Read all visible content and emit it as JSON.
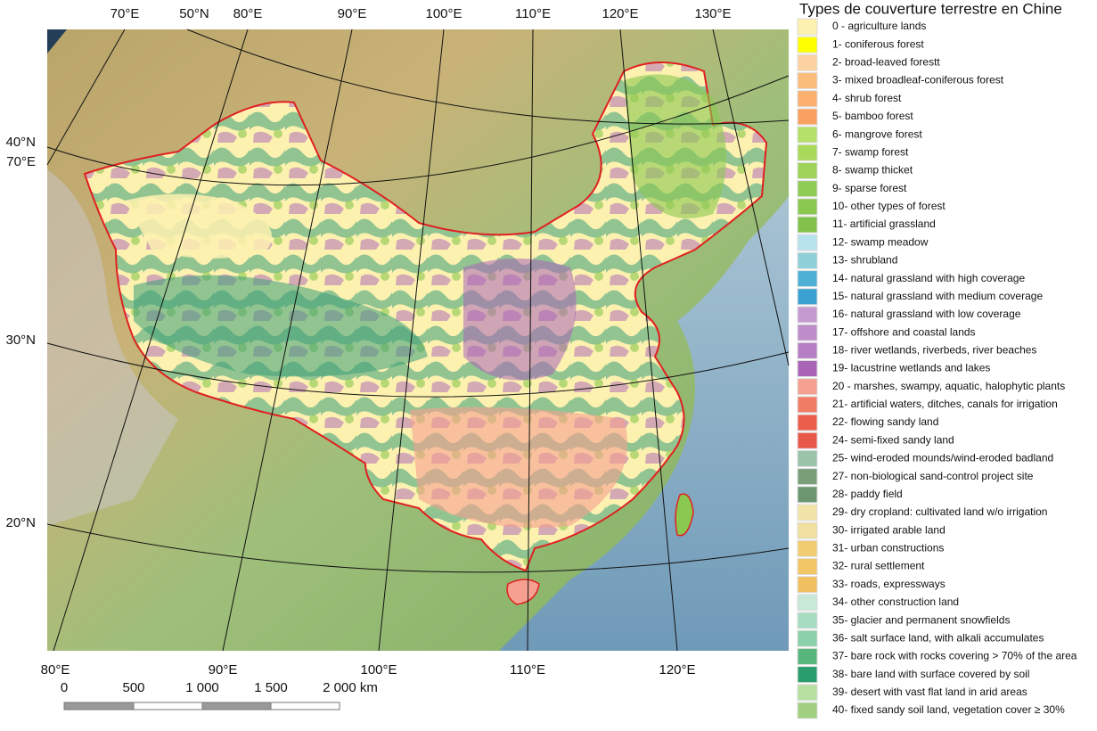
{
  "legend": {
    "title": "Types de couverture terrestre en Chine",
    "items": [
      {
        "label": "0 - agriculture lands",
        "color": "#fdf1b0"
      },
      {
        "label": "1- coniferous forest",
        "color": "#ffff00"
      },
      {
        "label": "2- broad-leaved forestt",
        "color": "#fcd3a0"
      },
      {
        "label": "3- mixed broadleaf-coniferous forest",
        "color": "#fbbd7c"
      },
      {
        "label": "4- shrub forest",
        "color": "#fbb070"
      },
      {
        "label": "5- bamboo forest",
        "color": "#f9a160"
      },
      {
        "label": "6- mangrove forest",
        "color": "#b5e06a"
      },
      {
        "label": "7- swamp forest",
        "color": "#a8d95a"
      },
      {
        "label": "8- swamp thicket",
        "color": "#9ed35a"
      },
      {
        "label": "9- sparse forest",
        "color": "#8fcc55"
      },
      {
        "label": "10- other types of forest",
        "color": "#8bc850"
      },
      {
        "label": "11- artificial grassland",
        "color": "#82c24c"
      },
      {
        "label": "12- swamp meadow",
        "color": "#b8e2ec"
      },
      {
        "label": "13- shrubland",
        "color": "#8ecfd8"
      },
      {
        "label": "14- natural grassland with high coverage",
        "color": "#4db0d4"
      },
      {
        "label": "15- natural grassland with medium coverage",
        "color": "#3aa1d1"
      },
      {
        "label": "16- natural grassland with low coverage",
        "color": "#c59ad0"
      },
      {
        "label": "17- offshore and coastal lands",
        "color": "#be8dca"
      },
      {
        "label": "18- river wetlands,  riverbeds,  river beaches",
        "color": "#b67ec4"
      },
      {
        "label": "19- lacustrine wetlands and lakes",
        "color": "#a964b8"
      },
      {
        "label": "20 - marshes,  swampy,  aquatic, halophytic plants",
        "color": "#f5a090"
      },
      {
        "label": "21- artificial waters,  ditches,  canals for irrigation",
        "color": "#f07c66"
      },
      {
        "label": "22- flowing sandy land",
        "color": "#ec5e4c"
      },
      {
        "label": "24- semi-fixed sandy land",
        "color": "#e85848"
      },
      {
        "label": "25- wind-eroded mounds/wind-eroded badland",
        "color": "#9bc3aa"
      },
      {
        "label": "27- non-biological sand-control project site",
        "color": "#7a9e78"
      },
      {
        "label": "28- paddy field",
        "color": "#6b9670"
      },
      {
        "label": "29- dry cropland: cultivated land w/o irrigation",
        "color": "#f2e3a8"
      },
      {
        "label": "30- irrigated arable land",
        "color": "#f0e0a0"
      },
      {
        "label": "31- urban constructions",
        "color": "#f2cc70"
      },
      {
        "label": "32- rural settlement",
        "color": "#f2c565"
      },
      {
        "label": "33- roads,  expressways",
        "color": "#f0c060"
      },
      {
        "label": "34- other construction land",
        "color": "#c8e8d8"
      },
      {
        "label": "35- glacier and permanent snowfields",
        "color": "#a8dcc0"
      },
      {
        "label": "36- salt surface land, with alkali accumulates",
        "color": "#8ad0a8"
      },
      {
        "label": "37- bare rock with rocks covering > 70% of the area",
        "color": "#56b67c"
      },
      {
        "label": "38- bare land with surface covered by soil",
        "color": "#2a9d6c"
      },
      {
        "label": "39- desert with vast flat land in arid areas",
        "color": "#b8e0a0"
      },
      {
        "label": "40- fixed sandy soil land, vegetation cover ≥ 30%",
        "color": "#a0d080"
      }
    ]
  },
  "graticule": {
    "top": [
      "70°E",
      "50°N",
      "80°E",
      "90°E",
      "100°E",
      "110°E",
      "120°E",
      "130°E"
    ],
    "left": [
      "40°N",
      "70°E",
      "30°N",
      "20°N"
    ],
    "bottom": [
      "80°E",
      "90°E",
      "100°E",
      "110°E",
      "120°E"
    ]
  },
  "scale_bar": {
    "labels": [
      "0",
      "500",
      "1 000",
      "1 500",
      "2 000 km"
    ]
  }
}
